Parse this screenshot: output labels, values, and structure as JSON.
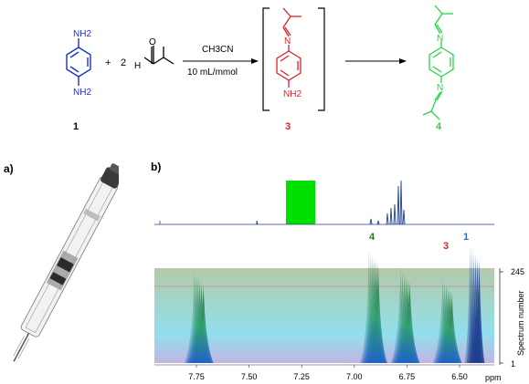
{
  "scheme": {
    "compound1": {
      "amine_top": "NH2",
      "amine_bottom": "NH2",
      "label": "1"
    },
    "plus": "+",
    "coefficient": "2",
    "aldehyde": {
      "oxygen": "O",
      "hydrogen": "H"
    },
    "conditions": {
      "solvent": "CH3CN",
      "concentration": "10 mL/mmol"
    },
    "compound3": {
      "imine_n": "N",
      "amine": "NH2",
      "label": "3"
    },
    "compound4": {
      "imine_n_top": "N",
      "imine_n_bottom": "N",
      "label": "4"
    },
    "colors": {
      "compound1": "#1a2fd6",
      "compound3": "#e0202a",
      "compound4": "#29d64a",
      "label3": "#e0202a",
      "label4": "#29d64a"
    }
  },
  "panels": {
    "a_label": "a)",
    "b_label": "b)"
  },
  "nmr": {
    "peak_labels": [
      {
        "text": "4",
        "color": "#1f7a2e"
      },
      {
        "text": "3",
        "color": "#d8262c"
      },
      {
        "text": "1",
        "color": "#2a6fbf"
      }
    ],
    "colors": {
      "top_spectrum": "#1f3f8f",
      "highlight_band": "#00e000"
    },
    "chart_data": {
      "type": "area",
      "x_axis": {
        "label": "ppm",
        "ticks": [
          7.75,
          7.5,
          7.25,
          7.0,
          6.75,
          6.5
        ],
        "reversed": true
      },
      "y_axis": {
        "label": "Spectrum number",
        "ticks": [
          245,
          1
        ]
      },
      "spectra_count": 245,
      "peaks_ppm": [
        {
          "ppm": 7.76,
          "assignment": ""
        },
        {
          "ppm": 6.93,
          "assignment": "4"
        },
        {
          "ppm": 6.78,
          "assignment": ""
        },
        {
          "ppm": 6.58,
          "assignment": "3"
        },
        {
          "ppm": 6.45,
          "assignment": "1"
        }
      ]
    }
  }
}
